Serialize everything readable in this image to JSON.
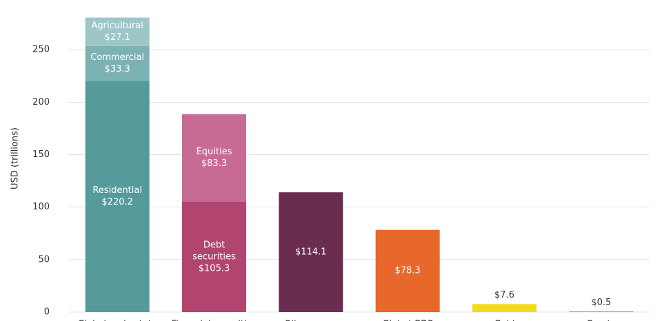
{
  "chart_data": {
    "type": "stacked_bar",
    "y_label": "USD (trillions)",
    "categories": [
      "Global real estate",
      "Financial securities",
      "Oil reserves",
      "Global GDP",
      "Gold",
      "Crypto"
    ],
    "ylim": [
      0,
      300
    ],
    "yticks": [
      0,
      50,
      100,
      150,
      200,
      250,
      300
    ],
    "grid": true,
    "series": [
      {
        "name": "Residential",
        "color": "#579a9c",
        "values": [
          220.2,
          null,
          null,
          null,
          null,
          null
        ],
        "value_labels": [
          "$220.2",
          null,
          null,
          null,
          null,
          null
        ]
      },
      {
        "name": "Commercial",
        "color": "#7db2b4",
        "values": [
          33.3,
          null,
          null,
          null,
          null,
          null
        ],
        "value_labels": [
          "$33.3",
          null,
          null,
          null,
          null,
          null
        ]
      },
      {
        "name": "Agricultural",
        "color": "#9ec6c8",
        "values": [
          27.1,
          null,
          null,
          null,
          null,
          null
        ],
        "value_labels": [
          "$27.1",
          null,
          null,
          null,
          null,
          null
        ]
      },
      {
        "name": "Debt securities",
        "color": "#b1456f",
        "values": [
          null,
          105.3,
          null,
          null,
          null,
          null
        ],
        "value_labels": [
          null,
          "$105.3",
          null,
          null,
          null,
          null
        ]
      },
      {
        "name": "Equities",
        "color": "#c86b93",
        "values": [
          null,
          83.3,
          null,
          null,
          null,
          null
        ],
        "value_labels": [
          null,
          "$83.3",
          null,
          null,
          null,
          null
        ]
      },
      {
        "colors": [
          null,
          null,
          "#6a2d50",
          "#e8672b",
          "#f2da1e",
          "#5b9a9c"
        ],
        "values": [
          null,
          null,
          114.1,
          78.3,
          7.6,
          0.5
        ],
        "value_labels": [
          null,
          null,
          "$114.1",
          "$78.3",
          "$7.6",
          "$0.5"
        ]
      }
    ]
  }
}
